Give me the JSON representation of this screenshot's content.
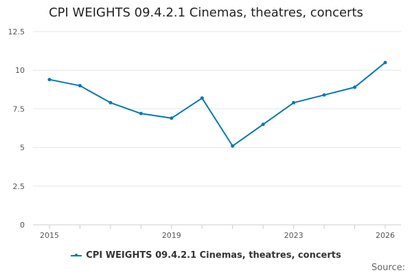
{
  "chart_data": {
    "type": "line",
    "title": "CPI WEIGHTS 09.4.2.1 Cinemas, theatres, concerts",
    "xlabel": "",
    "ylabel": "",
    "x": [
      2015,
      2016,
      2017,
      2018,
      2019,
      2020,
      2021,
      2022,
      2023,
      2024,
      2025,
      2026
    ],
    "series": [
      {
        "name": "CPI WEIGHTS 09.4.2.1 Cinemas, theatres, concerts",
        "color": "#0077b6",
        "values": [
          9.4,
          9.0,
          7.9,
          7.2,
          6.9,
          8.2,
          5.1,
          6.5,
          7.9,
          8.4,
          8.9,
          10.5
        ]
      }
    ],
    "xlim": [
      2015,
      2026
    ],
    "ylim": [
      0,
      12.5
    ],
    "y_ticks": [
      "0",
      "2.5",
      "5",
      "7.5",
      "10",
      "12.5"
    ],
    "x_ticks": [
      "2015",
      "2019",
      "2023",
      "2026"
    ],
    "grid": true,
    "legend_position": "bottom"
  },
  "footer": {
    "source_label": "Source:"
  }
}
